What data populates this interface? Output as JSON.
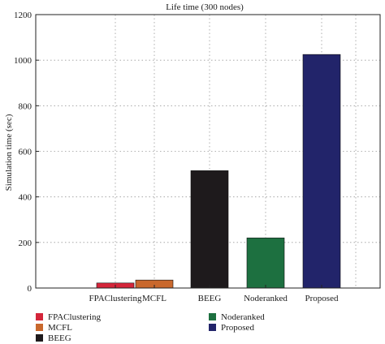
{
  "chart_data": {
    "type": "bar",
    "title": "Life time (300 nodes)",
    "xlabel": "",
    "ylabel": "Simulation time (sec)",
    "ylim": [
      0,
      1200
    ],
    "yticks": [
      0,
      200,
      400,
      600,
      800,
      1000,
      1200
    ],
    "categories": [
      "FPAClustering",
      "MCFL",
      "BEEG",
      "Noderanked",
      "Proposed"
    ],
    "values": [
      22,
      35,
      515,
      220,
      1025
    ],
    "colors": [
      "#d4253a",
      "#c9682d",
      "#1e1a1c",
      "#1d7040",
      "#22246a"
    ],
    "grid": true,
    "legend_position": "bottom"
  },
  "legend": [
    {
      "label": "FPAClustering",
      "color": "#d4253a"
    },
    {
      "label": "MCFL",
      "color": "#c9682d"
    },
    {
      "label": "BEEG",
      "color": "#1e1a1c"
    },
    {
      "label": "Noderanked",
      "color": "#1d7040"
    },
    {
      "label": "Proposed",
      "color": "#22246a"
    }
  ]
}
